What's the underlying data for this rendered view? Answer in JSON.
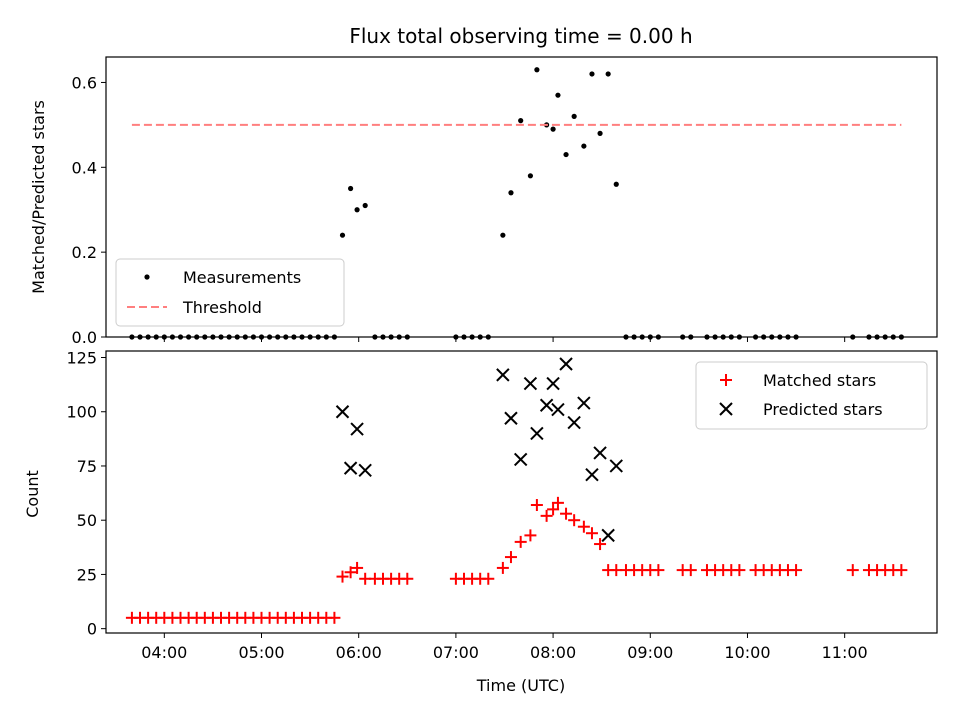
{
  "chart_data": [
    {
      "type": "scatter",
      "title": "Flux total observing time = 0.00 h",
      "xlabel": "",
      "ylabel": "Matched/Predicted stars",
      "ylim": [
        0,
        0.66
      ],
      "xlim": [
        "03:24",
        "11:57"
      ],
      "yticks": [
        "0.0",
        "0.2",
        "0.4",
        "0.6"
      ],
      "grid": false,
      "legend": "lower-left",
      "series": [
        {
          "name": "Measurements",
          "kind": "points",
          "color": "#000000",
          "points": [
            [
              "03:40",
              0
            ],
            [
              "03:45",
              0
            ],
            [
              "03:50",
              0
            ],
            [
              "03:55",
              0
            ],
            [
              "04:00",
              0
            ],
            [
              "04:05",
              0
            ],
            [
              "04:10",
              0
            ],
            [
              "04:15",
              0
            ],
            [
              "04:20",
              0
            ],
            [
              "04:25",
              0
            ],
            [
              "04:30",
              0
            ],
            [
              "04:35",
              0
            ],
            [
              "04:40",
              0
            ],
            [
              "04:45",
              0
            ],
            [
              "04:50",
              0
            ],
            [
              "04:55",
              0
            ],
            [
              "05:00",
              0
            ],
            [
              "05:05",
              0
            ],
            [
              "05:10",
              0
            ],
            [
              "05:15",
              0
            ],
            [
              "05:20",
              0
            ],
            [
              "05:25",
              0
            ],
            [
              "05:30",
              0
            ],
            [
              "05:35",
              0
            ],
            [
              "05:40",
              0
            ],
            [
              "05:45",
              0
            ],
            [
              "05:50",
              0.24
            ],
            [
              "05:55",
              0.35
            ],
            [
              "05:59",
              0.3
            ],
            [
              "06:04",
              0.31
            ],
            [
              "06:10",
              0
            ],
            [
              "06:15",
              0
            ],
            [
              "06:20",
              0
            ],
            [
              "06:25",
              0
            ],
            [
              "06:30",
              0
            ],
            [
              "07:00",
              0
            ],
            [
              "07:05",
              0
            ],
            [
              "07:10",
              0
            ],
            [
              "07:15",
              0
            ],
            [
              "07:20",
              0
            ],
            [
              "07:29",
              0.24
            ],
            [
              "07:34",
              0.34
            ],
            [
              "07:40",
              0.51
            ],
            [
              "07:46",
              0.38
            ],
            [
              "07:50",
              0.63
            ],
            [
              "07:56",
              0.5
            ],
            [
              "08:00",
              0.49
            ],
            [
              "08:03",
              0.57
            ],
            [
              "08:08",
              0.43
            ],
            [
              "08:13",
              0.52
            ],
            [
              "08:19",
              0.45
            ],
            [
              "08:24",
              0.62
            ],
            [
              "08:29",
              0.48
            ],
            [
              "08:34",
              0.62
            ],
            [
              "08:39",
              0.36
            ],
            [
              "08:45",
              0
            ],
            [
              "08:50",
              0
            ],
            [
              "08:55",
              0
            ],
            [
              "09:00",
              0
            ],
            [
              "09:05",
              0
            ],
            [
              "09:20",
              0
            ],
            [
              "09:25",
              0
            ],
            [
              "09:35",
              0
            ],
            [
              "09:40",
              0
            ],
            [
              "09:45",
              0
            ],
            [
              "09:50",
              0
            ],
            [
              "09:55",
              0
            ],
            [
              "10:05",
              0
            ],
            [
              "10:10",
              0
            ],
            [
              "10:15",
              0
            ],
            [
              "10:20",
              0
            ],
            [
              "10:25",
              0
            ],
            [
              "10:30",
              0
            ],
            [
              "11:05",
              0
            ],
            [
              "11:15",
              0
            ],
            [
              "11:20",
              0
            ],
            [
              "11:25",
              0
            ],
            [
              "11:30",
              0
            ],
            [
              "11:35",
              0
            ]
          ]
        },
        {
          "name": "Threshold",
          "kind": "dashed-line",
          "color": "#ff7f7f",
          "points": [
            [
              "03:40",
              0.5
            ],
            [
              "11:35",
              0.5
            ]
          ]
        }
      ]
    },
    {
      "type": "scatter",
      "title": "",
      "xlabel": "Time (UTC)",
      "ylabel": "Count",
      "ylim": [
        -2,
        128
      ],
      "xlim": [
        "03:24",
        "11:57"
      ],
      "yticks": [
        "0",
        "25",
        "50",
        "75",
        "100",
        "125"
      ],
      "xticks": [
        "04:00",
        "05:00",
        "06:00",
        "07:00",
        "08:00",
        "09:00",
        "10:00",
        "11:00"
      ],
      "grid": false,
      "legend": "top-right",
      "series": [
        {
          "name": "Matched stars",
          "kind": "plus",
          "color": "#ff0000",
          "points": [
            [
              "03:40",
              5
            ],
            [
              "03:45",
              5
            ],
            [
              "03:50",
              5
            ],
            [
              "03:55",
              5
            ],
            [
              "04:00",
              5
            ],
            [
              "04:05",
              5
            ],
            [
              "04:10",
              5
            ],
            [
              "04:15",
              5
            ],
            [
              "04:20",
              5
            ],
            [
              "04:25",
              5
            ],
            [
              "04:30",
              5
            ],
            [
              "04:35",
              5
            ],
            [
              "04:40",
              5
            ],
            [
              "04:45",
              5
            ],
            [
              "04:50",
              5
            ],
            [
              "04:55",
              5
            ],
            [
              "05:00",
              5
            ],
            [
              "05:05",
              5
            ],
            [
              "05:10",
              5
            ],
            [
              "05:15",
              5
            ],
            [
              "05:20",
              5
            ],
            [
              "05:25",
              5
            ],
            [
              "05:30",
              5
            ],
            [
              "05:35",
              5
            ],
            [
              "05:40",
              5
            ],
            [
              "05:45",
              5
            ],
            [
              "05:50",
              24
            ],
            [
              "05:55",
              26
            ],
            [
              "05:59",
              28
            ],
            [
              "06:04",
              23
            ],
            [
              "06:10",
              23
            ],
            [
              "06:15",
              23
            ],
            [
              "06:20",
              23
            ],
            [
              "06:25",
              23
            ],
            [
              "06:30",
              23
            ],
            [
              "07:00",
              23
            ],
            [
              "07:05",
              23
            ],
            [
              "07:10",
              23
            ],
            [
              "07:15",
              23
            ],
            [
              "07:20",
              23
            ],
            [
              "07:29",
              28
            ],
            [
              "07:34",
              33
            ],
            [
              "07:40",
              40
            ],
            [
              "07:46",
              43
            ],
            [
              "07:50",
              57
            ],
            [
              "07:56",
              52
            ],
            [
              "08:00",
              55
            ],
            [
              "08:03",
              58
            ],
            [
              "08:08",
              53
            ],
            [
              "08:13",
              50
            ],
            [
              "08:19",
              47
            ],
            [
              "08:24",
              44
            ],
            [
              "08:29",
              39
            ],
            [
              "08:34",
              27
            ],
            [
              "08:39",
              27
            ],
            [
              "08:45",
              27
            ],
            [
              "08:50",
              27
            ],
            [
              "08:55",
              27
            ],
            [
              "09:00",
              27
            ],
            [
              "09:05",
              27
            ],
            [
              "09:20",
              27
            ],
            [
              "09:25",
              27
            ],
            [
              "09:35",
              27
            ],
            [
              "09:40",
              27
            ],
            [
              "09:45",
              27
            ],
            [
              "09:50",
              27
            ],
            [
              "09:55",
              27
            ],
            [
              "10:05",
              27
            ],
            [
              "10:10",
              27
            ],
            [
              "10:15",
              27
            ],
            [
              "10:20",
              27
            ],
            [
              "10:25",
              27
            ],
            [
              "10:30",
              27
            ],
            [
              "11:05",
              27
            ],
            [
              "11:15",
              27
            ],
            [
              "11:20",
              27
            ],
            [
              "11:25",
              27
            ],
            [
              "11:30",
              27
            ],
            [
              "11:35",
              27
            ]
          ]
        },
        {
          "name": "Predicted stars",
          "kind": "x",
          "color": "#000000",
          "points": [
            [
              "05:50",
              100
            ],
            [
              "05:55",
              74
            ],
            [
              "05:59",
              92
            ],
            [
              "06:04",
              73
            ],
            [
              "07:29",
              117
            ],
            [
              "07:34",
              97
            ],
            [
              "07:40",
              78
            ],
            [
              "07:46",
              113
            ],
            [
              "07:50",
              90
            ],
            [
              "07:56",
              103
            ],
            [
              "08:00",
              113
            ],
            [
              "08:03",
              101
            ],
            [
              "08:08",
              122
            ],
            [
              "08:13",
              95
            ],
            [
              "08:19",
              104
            ],
            [
              "08:24",
              71
            ],
            [
              "08:29",
              81
            ],
            [
              "08:34",
              43
            ],
            [
              "08:39",
              75
            ]
          ]
        }
      ]
    }
  ]
}
